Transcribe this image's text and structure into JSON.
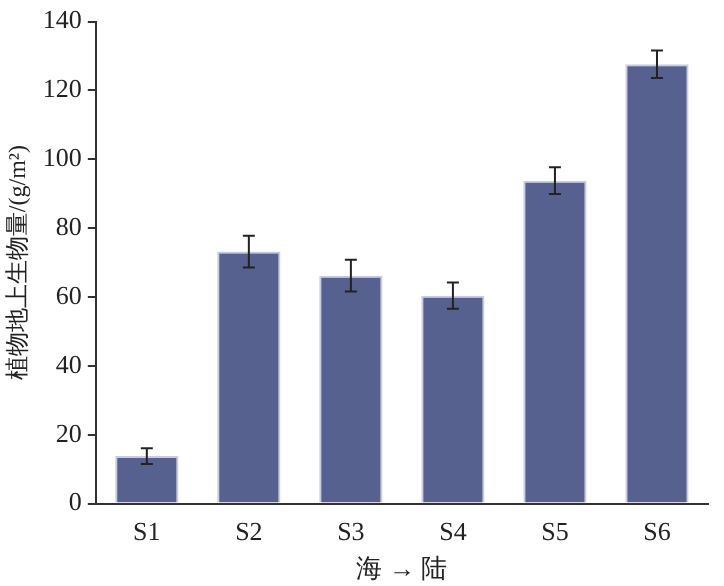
{
  "chart_data": {
    "type": "bar",
    "ylabel": "植物地上生物量/(g/m²)",
    "xlabel": "海 → 陆",
    "categories": [
      "S1",
      "S2",
      "S3",
      "S4",
      "S5",
      "S6"
    ],
    "values": [
      13.8,
      73.2,
      66.2,
      60.4,
      93.8,
      127.6
    ],
    "errors": [
      2.3,
      4.6,
      4.6,
      3.8,
      3.9,
      4
    ],
    "color": "#56618f",
    "ylim": [
      0,
      140
    ],
    "yticks": [
      0,
      20,
      40,
      60,
      80,
      100,
      120,
      140
    ],
    "grid": false,
    "legend": false
  }
}
